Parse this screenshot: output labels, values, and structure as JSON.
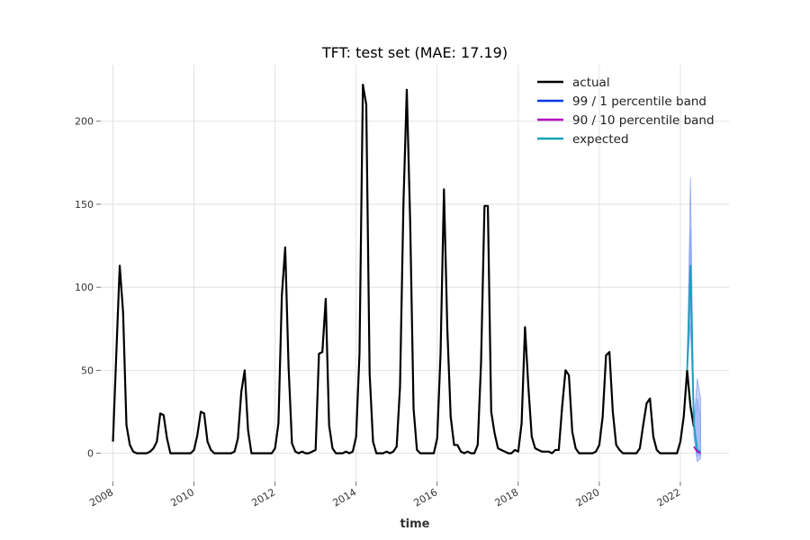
{
  "chart_data": {
    "type": "line",
    "title": "TFT: test set (MAE: 17.19)",
    "xlabel": "time",
    "ylabel": "",
    "xlim": [
      2007.7,
      2023.2
    ],
    "ylim": [
      -17,
      234
    ],
    "x_ticks": [
      2008,
      2010,
      2012,
      2014,
      2016,
      2018,
      2020,
      2022
    ],
    "x_tick_labels": [
      "2008",
      "2010",
      "2012",
      "2014",
      "2016",
      "2018",
      "2020",
      "2022"
    ],
    "y_ticks": [
      0,
      50,
      100,
      150,
      200
    ],
    "y_tick_labels": [
      "0",
      "50",
      "100",
      "150",
      "200"
    ],
    "grid": true,
    "legend_position": "top-right",
    "legend": [
      {
        "label": "actual",
        "color": "#000000"
      },
      {
        "label": "99 / 1 percentile band",
        "color": "#0a37e6"
      },
      {
        "label": "90 / 10 percentile band",
        "color": "#b30fbf"
      },
      {
        "label": "expected",
        "color": "#17a2b8"
      }
    ],
    "series": [
      {
        "name": "actual",
        "color": "#000000",
        "points": [
          [
            2008.0,
            7
          ],
          [
            2008.083,
            60
          ],
          [
            2008.167,
            113
          ],
          [
            2008.25,
            85
          ],
          [
            2008.333,
            17
          ],
          [
            2008.417,
            5
          ],
          [
            2008.5,
            1
          ],
          [
            2008.583,
            0
          ],
          [
            2008.667,
            0
          ],
          [
            2008.75,
            0
          ],
          [
            2008.833,
            0
          ],
          [
            2008.917,
            1
          ],
          [
            2009.0,
            3
          ],
          [
            2009.083,
            7
          ],
          [
            2009.167,
            24
          ],
          [
            2009.25,
            23
          ],
          [
            2009.333,
            9
          ],
          [
            2009.417,
            0
          ],
          [
            2009.5,
            0
          ],
          [
            2009.583,
            0
          ],
          [
            2009.667,
            0
          ],
          [
            2009.75,
            0
          ],
          [
            2009.833,
            0
          ],
          [
            2009.917,
            0
          ],
          [
            2010.0,
            2
          ],
          [
            2010.083,
            11
          ],
          [
            2010.167,
            25
          ],
          [
            2010.25,
            24
          ],
          [
            2010.333,
            7
          ],
          [
            2010.417,
            2
          ],
          [
            2010.5,
            0
          ],
          [
            2010.583,
            0
          ],
          [
            2010.667,
            0
          ],
          [
            2010.75,
            0
          ],
          [
            2010.833,
            0
          ],
          [
            2010.917,
            0
          ],
          [
            2011.0,
            1
          ],
          [
            2011.083,
            9
          ],
          [
            2011.167,
            37
          ],
          [
            2011.25,
            50
          ],
          [
            2011.333,
            14
          ],
          [
            2011.417,
            0
          ],
          [
            2011.5,
            0
          ],
          [
            2011.583,
            0
          ],
          [
            2011.667,
            0
          ],
          [
            2011.75,
            0
          ],
          [
            2011.833,
            0
          ],
          [
            2011.917,
            0
          ],
          [
            2012.0,
            3
          ],
          [
            2012.083,
            18
          ],
          [
            2012.167,
            95
          ],
          [
            2012.25,
            124
          ],
          [
            2012.333,
            52
          ],
          [
            2012.417,
            6
          ],
          [
            2012.5,
            1
          ],
          [
            2012.583,
            0
          ],
          [
            2012.667,
            1
          ],
          [
            2012.75,
            0
          ],
          [
            2012.833,
            0
          ],
          [
            2012.917,
            1
          ],
          [
            2013.0,
            2
          ],
          [
            2013.083,
            60
          ],
          [
            2013.167,
            61
          ],
          [
            2013.25,
            93
          ],
          [
            2013.333,
            17
          ],
          [
            2013.417,
            3
          ],
          [
            2013.5,
            0
          ],
          [
            2013.583,
            0
          ],
          [
            2013.667,
            0
          ],
          [
            2013.75,
            1
          ],
          [
            2013.833,
            0
          ],
          [
            2013.917,
            1
          ],
          [
            2014.0,
            10
          ],
          [
            2014.083,
            60
          ],
          [
            2014.167,
            222
          ],
          [
            2014.25,
            210
          ],
          [
            2014.333,
            48
          ],
          [
            2014.417,
            7
          ],
          [
            2014.5,
            0
          ],
          [
            2014.583,
            0
          ],
          [
            2014.667,
            0
          ],
          [
            2014.75,
            1
          ],
          [
            2014.833,
            0
          ],
          [
            2014.917,
            1
          ],
          [
            2015.0,
            4
          ],
          [
            2015.083,
            40
          ],
          [
            2015.167,
            150
          ],
          [
            2015.25,
            219
          ],
          [
            2015.333,
            140
          ],
          [
            2015.417,
            27
          ],
          [
            2015.5,
            2
          ],
          [
            2015.583,
            0
          ],
          [
            2015.667,
            0
          ],
          [
            2015.75,
            0
          ],
          [
            2015.833,
            0
          ],
          [
            2015.917,
            0
          ],
          [
            2016.0,
            9
          ],
          [
            2016.083,
            60
          ],
          [
            2016.167,
            159
          ],
          [
            2016.25,
            75
          ],
          [
            2016.333,
            22
          ],
          [
            2016.417,
            5
          ],
          [
            2016.5,
            5
          ],
          [
            2016.583,
            1
          ],
          [
            2016.667,
            0
          ],
          [
            2016.75,
            1
          ],
          [
            2016.833,
            0
          ],
          [
            2016.917,
            0
          ],
          [
            2017.0,
            5
          ],
          [
            2017.083,
            55
          ],
          [
            2017.167,
            149
          ],
          [
            2017.25,
            149
          ],
          [
            2017.333,
            25
          ],
          [
            2017.417,
            12
          ],
          [
            2017.5,
            3
          ],
          [
            2017.583,
            2
          ],
          [
            2017.667,
            1
          ],
          [
            2017.75,
            0
          ],
          [
            2017.833,
            0
          ],
          [
            2017.917,
            2
          ],
          [
            2018.0,
            1
          ],
          [
            2018.083,
            18
          ],
          [
            2018.167,
            76
          ],
          [
            2018.25,
            40
          ],
          [
            2018.333,
            10
          ],
          [
            2018.417,
            3
          ],
          [
            2018.5,
            2
          ],
          [
            2018.583,
            1
          ],
          [
            2018.667,
            1
          ],
          [
            2018.75,
            1
          ],
          [
            2018.833,
            0
          ],
          [
            2018.917,
            2
          ],
          [
            2019.0,
            2
          ],
          [
            2019.083,
            28
          ],
          [
            2019.167,
            50
          ],
          [
            2019.25,
            47
          ],
          [
            2019.333,
            13
          ],
          [
            2019.417,
            3
          ],
          [
            2019.5,
            0
          ],
          [
            2019.583,
            0
          ],
          [
            2019.667,
            0
          ],
          [
            2019.75,
            0
          ],
          [
            2019.833,
            0
          ],
          [
            2019.917,
            1
          ],
          [
            2020.0,
            5
          ],
          [
            2020.083,
            22
          ],
          [
            2020.167,
            59
          ],
          [
            2020.25,
            61
          ],
          [
            2020.333,
            25
          ],
          [
            2020.417,
            5
          ],
          [
            2020.5,
            2
          ],
          [
            2020.583,
            0
          ],
          [
            2020.667,
            0
          ],
          [
            2020.75,
            0
          ],
          [
            2020.833,
            0
          ],
          [
            2020.917,
            0
          ],
          [
            2021.0,
            3
          ],
          [
            2021.083,
            17
          ],
          [
            2021.167,
            30
          ],
          [
            2021.25,
            33
          ],
          [
            2021.333,
            10
          ],
          [
            2021.417,
            2
          ],
          [
            2021.5,
            0
          ],
          [
            2021.583,
            0
          ],
          [
            2021.667,
            0
          ],
          [
            2021.75,
            0
          ],
          [
            2021.833,
            0
          ],
          [
            2021.917,
            0
          ],
          [
            2022.0,
            7
          ],
          [
            2022.083,
            22
          ],
          [
            2022.167,
            50
          ],
          [
            2022.25,
            28
          ],
          [
            2022.333,
            16
          ]
        ]
      },
      {
        "name": "expected",
        "color": "#17a2b8",
        "points": [
          [
            2022.167,
            50
          ],
          [
            2022.25,
            113
          ],
          [
            2022.333,
            18
          ],
          [
            2022.417,
            2
          ],
          [
            2022.5,
            1
          ]
        ]
      },
      {
        "name": "90 / 10 percentile band",
        "color": "#b30fbf",
        "points": [
          [
            2022.333,
            4
          ],
          [
            2022.417,
            1
          ],
          [
            2022.5,
            0
          ]
        ]
      }
    ],
    "bands": [
      {
        "name": "99 / 1 percentile band",
        "color": "#3a68f0",
        "x": [
          2022.167,
          2022.25,
          2022.333,
          2022.417,
          2022.5
        ],
        "upper": [
          48,
          166,
          18,
          45,
          33
        ],
        "lower": [
          47,
          78,
          10,
          -5,
          -3
        ]
      },
      {
        "name": "90 / 10 percentile band",
        "color": "#6a8cf5",
        "x": [
          2022.167,
          2022.25,
          2022.333,
          2022.417,
          2022.5
        ],
        "upper": [
          49,
          135,
          16,
          33,
          20
        ],
        "lower": [
          48,
          90,
          12,
          -2,
          -1
        ]
      }
    ]
  }
}
